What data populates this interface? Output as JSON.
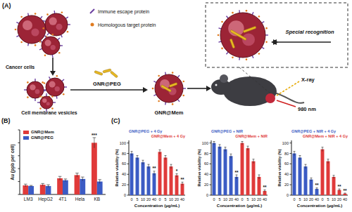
{
  "panel_labels": [
    "(A)",
    "(B)",
    "(C)"
  ],
  "diagram": {
    "legend_labels": [
      "Immune escape protein",
      "Homologous target protein"
    ],
    "cells_label": "Cancer cells",
    "vesicles_label": "Cell membrane vesicles",
    "reagent_label": "GNR@PEG",
    "product_label": "GNR@Mem",
    "recognition_label": "Special recognition",
    "irradiation_labels": [
      "X-ray",
      "980 nm"
    ]
  },
  "chart_data": [
    {
      "type": "bar",
      "y_label": "Au (ppb per cell)",
      "categories": [
        "LM3",
        "HepG2",
        "4T1",
        "Hela",
        "KB"
      ],
      "series": [
        {
          "name": "GNR@Mem",
          "color": "#e03a3a",
          "values": [
            14,
            15,
            25,
            30,
            80
          ],
          "errors": [
            2,
            2,
            3,
            3,
            8
          ],
          "significance": [
            null,
            null,
            null,
            null,
            "***"
          ]
        },
        {
          "name": "GNR@PEG",
          "color": "#3b5bc4",
          "values": [
            13,
            13,
            22,
            24,
            20
          ],
          "errors": [
            1,
            2,
            2,
            3,
            3
          ],
          "significance": [
            null,
            null,
            null,
            null,
            null
          ]
        }
      ],
      "ylim": [
        0,
        100
      ],
      "yticks": [
        0,
        20,
        40,
        60,
        80,
        100
      ],
      "tick_labels": "x",
      "legend": "upper left"
    },
    {
      "type": "bar",
      "y_label": "Relative viability (%)",
      "x_label": "Concentration (μg/mL)",
      "categories": [
        "0",
        "5",
        "10",
        "20",
        "40"
      ],
      "series": [
        {
          "name": "GNR@PEG + 4 Gy",
          "color": "#3b5bc4",
          "values": [
            80,
            72,
            63,
            55,
            42
          ],
          "errors": [
            4,
            4,
            4,
            4,
            4
          ],
          "significance": [
            null,
            null,
            null,
            null,
            "**"
          ]
        },
        {
          "name": "GNR@Mem + 4 Gy",
          "color": "#e03a3a",
          "values": [
            83,
            72,
            55,
            38,
            22
          ],
          "errors": [
            4,
            4,
            4,
            3,
            3
          ],
          "significance": [
            null,
            null,
            null,
            "*",
            "**"
          ]
        }
      ],
      "ylim": [
        0,
        105
      ],
      "yticks": [
        0,
        20,
        40,
        60,
        80,
        100
      ],
      "legend": "top"
    },
    {
      "type": "bar",
      "y_label": "Relative viability (%)",
      "x_label": "Concentration (μg/mL)",
      "categories": [
        "0",
        "5",
        "10",
        "20",
        "40"
      ],
      "series": [
        {
          "name": "GNR@PEG + NIR",
          "color": "#3b5bc4",
          "values": [
            100,
            93,
            88,
            75,
            35
          ],
          "errors": [
            3,
            4,
            4,
            4,
            4
          ],
          "significance": [
            null,
            null,
            null,
            null,
            "**"
          ]
        },
        {
          "name": "GNR@Mem + NIR",
          "color": "#e03a3a",
          "values": [
            100,
            90,
            65,
            35,
            8
          ],
          "errors": [
            3,
            4,
            4,
            4,
            2
          ],
          "significance": [
            null,
            null,
            null,
            null,
            "**"
          ]
        }
      ],
      "ylim": [
        0,
        105
      ],
      "yticks": [
        0,
        20,
        40,
        60,
        80,
        100
      ],
      "legend": "top"
    },
    {
      "type": "bar",
      "y_label": "Relative viability (%)",
      "x_label": "Concentration (μg/mL)",
      "categories": [
        "0",
        "5",
        "10",
        "20",
        "40"
      ],
      "series": [
        {
          "name": "GNR@PEG + NIR + 4 Gy",
          "color": "#3b5bc4",
          "values": [
            80,
            72,
            55,
            30,
            12
          ],
          "errors": [
            4,
            4,
            4,
            3,
            2
          ],
          "significance": [
            null,
            null,
            null,
            null,
            "**"
          ]
        },
        {
          "name": "GNR@Mem + NIR + 4 Gy",
          "color": "#e03a3a",
          "values": [
            88,
            65,
            35,
            10,
            3
          ],
          "errors": [
            4,
            4,
            3,
            2,
            1
          ],
          "significance": [
            null,
            null,
            null,
            "**",
            "**"
          ]
        }
      ],
      "ylim": [
        0,
        105
      ],
      "yticks": [
        0,
        20,
        40,
        60,
        80,
        100
      ],
      "legend": "top"
    }
  ]
}
